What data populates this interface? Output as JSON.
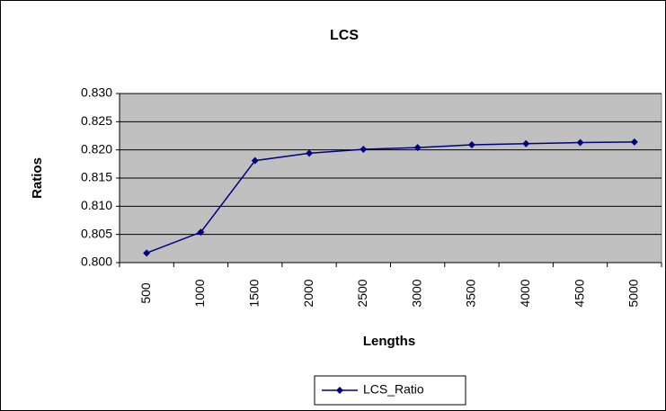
{
  "chart_data": {
    "type": "line",
    "title": "LCS",
    "x_label": "Lengths",
    "y_label": "Ratios",
    "categories": [
      "500",
      "1000",
      "1500",
      "2000",
      "2500",
      "3000",
      "3500",
      "4000",
      "4500",
      "5000"
    ],
    "series": [
      {
        "name": "LCS_Ratio",
        "color": "#000080",
        "values": [
          0.8017,
          0.8054,
          0.8181,
          0.8194,
          0.8201,
          0.8204,
          0.8209,
          0.8211,
          0.8213,
          0.8214
        ]
      }
    ],
    "ylim": [
      0.8,
      0.83
    ],
    "yticks": [
      {
        "value": 0.8,
        "label": "0.800"
      },
      0.805,
      {
        "value": 0.81,
        "label": "0.810"
      },
      0.815,
      {
        "value": 0.82,
        "label": "0.820"
      },
      0.825,
      {
        "value": 0.83,
        "label": "0.830"
      }
    ],
    "grid": true,
    "legend": "bottom"
  }
}
